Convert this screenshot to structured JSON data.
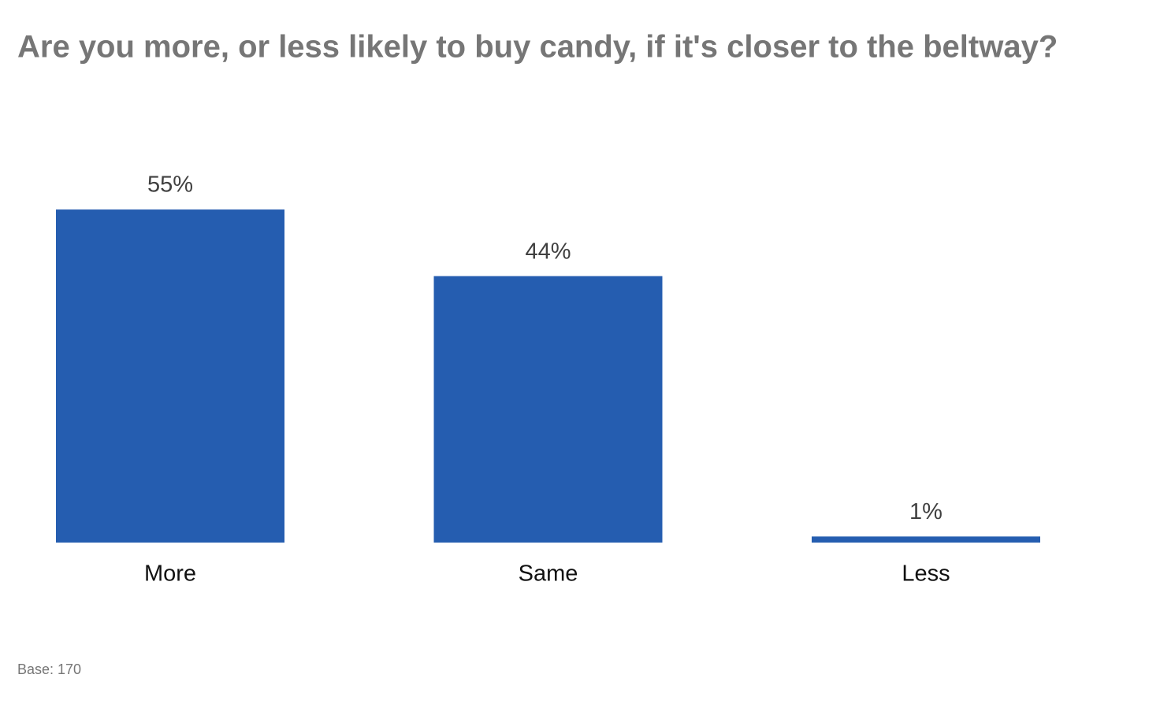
{
  "chart_data": {
    "type": "bar",
    "title": "Are you more, or less likely to buy candy, if it's closer to the beltway?",
    "categories": [
      "More",
      "Same",
      "Less"
    ],
    "values": [
      55,
      44,
      1
    ],
    "value_labels": [
      "55%",
      "44%",
      "1%"
    ],
    "color": "#255db0",
    "footnote": "Base: 170"
  }
}
